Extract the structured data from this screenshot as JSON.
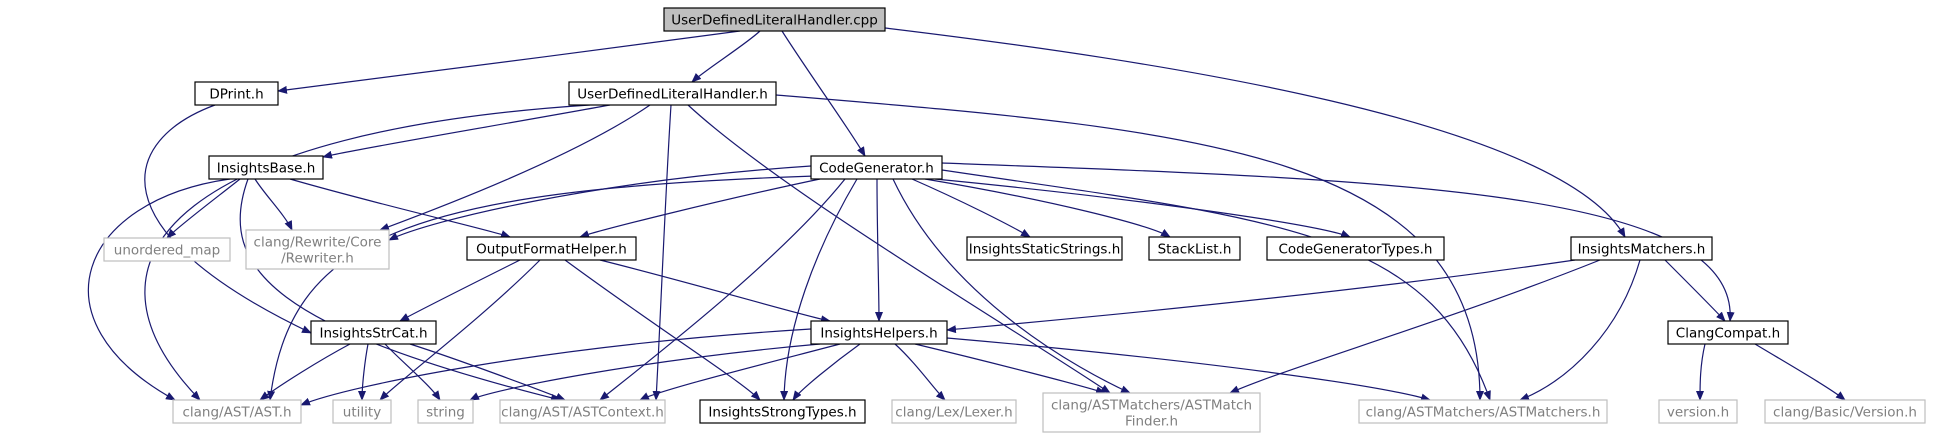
{
  "colors": {
    "edge": "#191970",
    "node_border": "#000000",
    "external_border": "#bfbfbf",
    "external_text": "#808080",
    "root_fill": "#bfbfbf",
    "text": "#000000"
  },
  "nodes": [
    {
      "id": "root",
      "label": "UserDefinedLiteralHandler.cpp",
      "kind": "root"
    },
    {
      "id": "dprint",
      "label": "DPrint.h",
      "kind": "local"
    },
    {
      "id": "udlh",
      "label": "UserDefinedLiteralHandler.h",
      "kind": "local"
    },
    {
      "id": "codegen",
      "label": "CodeGenerator.h",
      "kind": "local"
    },
    {
      "id": "matchers",
      "label": "InsightsMatchers.h",
      "kind": "local"
    },
    {
      "id": "base",
      "label": "InsightsBase.h",
      "kind": "local"
    },
    {
      "id": "unordered",
      "label": "unordered_map",
      "kind": "external"
    },
    {
      "id": "rewriter",
      "label": "clang/Rewrite/Core\n/Rewriter.h",
      "kind": "external"
    },
    {
      "id": "ofh",
      "label": "OutputFormatHelper.h",
      "kind": "local"
    },
    {
      "id": "iss",
      "label": "InsightsStaticStrings.h",
      "kind": "local"
    },
    {
      "id": "stacklist",
      "label": "StackList.h",
      "kind": "local"
    },
    {
      "id": "cgtypes",
      "label": "CodeGeneratorTypes.h",
      "kind": "local"
    },
    {
      "id": "compat",
      "label": "ClangCompat.h",
      "kind": "local"
    },
    {
      "id": "strcat",
      "label": "InsightsStrCat.h",
      "kind": "local"
    },
    {
      "id": "helpers",
      "label": "InsightsHelpers.h",
      "kind": "local"
    },
    {
      "id": "ast",
      "label": "clang/AST/AST.h",
      "kind": "external"
    },
    {
      "id": "utility",
      "label": "utility",
      "kind": "external"
    },
    {
      "id": "string",
      "label": "string",
      "kind": "external"
    },
    {
      "id": "astctx",
      "label": "clang/AST/ASTContext.h",
      "kind": "external"
    },
    {
      "id": "strong",
      "label": "InsightsStrongTypes.h",
      "kind": "local"
    },
    {
      "id": "lexer",
      "label": "clang/Lex/Lexer.h",
      "kind": "external"
    },
    {
      "id": "finder",
      "label": "clang/ASTMatchers/ASTMatch\nFinder.h",
      "kind": "external"
    },
    {
      "id": "astmatchers",
      "label": "clang/ASTMatchers/ASTMatchers.h",
      "kind": "external"
    },
    {
      "id": "version",
      "label": "version.h",
      "kind": "external"
    },
    {
      "id": "basicver",
      "label": "clang/Basic/Version.h",
      "kind": "external"
    }
  ],
  "edges": [
    [
      "root",
      "dprint"
    ],
    [
      "root",
      "udlh"
    ],
    [
      "root",
      "codegen"
    ],
    [
      "root",
      "matchers"
    ],
    [
      "dprint",
      "strcat"
    ],
    [
      "udlh",
      "ast"
    ],
    [
      "udlh",
      "base"
    ],
    [
      "udlh",
      "rewriter"
    ],
    [
      "udlh",
      "astctx"
    ],
    [
      "udlh",
      "finder"
    ],
    [
      "udlh",
      "astmatchers"
    ],
    [
      "base",
      "ast"
    ],
    [
      "base",
      "unordered"
    ],
    [
      "base",
      "rewriter"
    ],
    [
      "base",
      "ofh"
    ],
    [
      "base",
      "astctx"
    ],
    [
      "codegen",
      "rewriter"
    ],
    [
      "codegen",
      "ofh"
    ],
    [
      "codegen",
      "ast"
    ],
    [
      "codegen",
      "astctx"
    ],
    [
      "codegen",
      "strong"
    ],
    [
      "codegen",
      "helpers"
    ],
    [
      "codegen",
      "finder"
    ],
    [
      "codegen",
      "iss"
    ],
    [
      "codegen",
      "stacklist"
    ],
    [
      "codegen",
      "cgtypes"
    ],
    [
      "codegen",
      "astmatchers"
    ],
    [
      "codegen",
      "compat"
    ],
    [
      "ofh",
      "strcat"
    ],
    [
      "ofh",
      "utility"
    ],
    [
      "ofh",
      "strong"
    ],
    [
      "ofh",
      "helpers"
    ],
    [
      "matchers",
      "helpers"
    ],
    [
      "matchers",
      "finder"
    ],
    [
      "matchers",
      "astmatchers"
    ],
    [
      "matchers",
      "compat"
    ],
    [
      "compat",
      "version"
    ],
    [
      "compat",
      "basicver"
    ],
    [
      "strcat",
      "ast"
    ],
    [
      "strcat",
      "utility"
    ],
    [
      "strcat",
      "string"
    ],
    [
      "strcat",
      "astctx"
    ],
    [
      "helpers",
      "ast"
    ],
    [
      "helpers",
      "string"
    ],
    [
      "helpers",
      "astctx"
    ],
    [
      "helpers",
      "strong"
    ],
    [
      "helpers",
      "lexer"
    ],
    [
      "helpers",
      "finder"
    ],
    [
      "helpers",
      "astmatchers"
    ]
  ]
}
